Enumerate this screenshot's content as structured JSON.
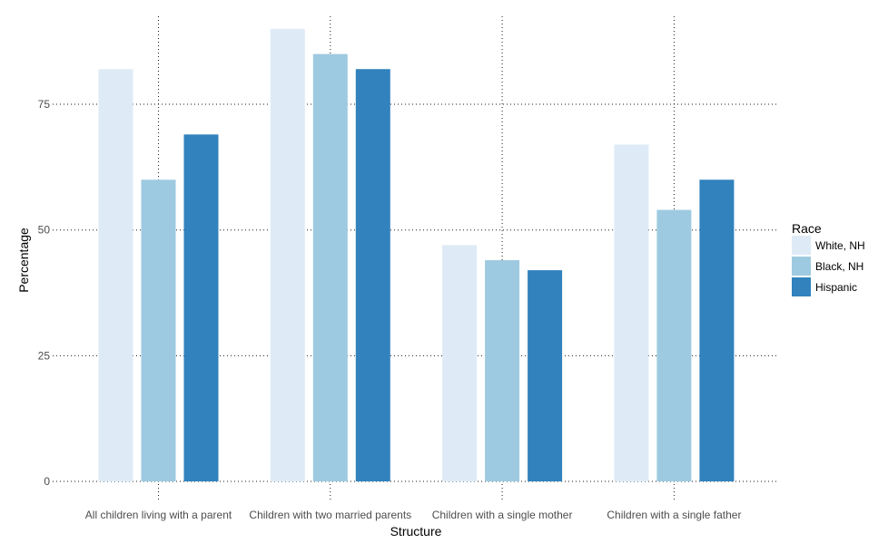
{
  "chart_data": {
    "type": "bar",
    "title": "",
    "xlabel": "Structure",
    "ylabel": "Percentage",
    "categories": [
      "All children living with a parent",
      "Children with two married parents",
      "Children with a single mother",
      "Children with a single father"
    ],
    "series": [
      {
        "name": "White, NH",
        "color": "#deebf7",
        "values": [
          82,
          90,
          47,
          67
        ]
      },
      {
        "name": "Black, NH",
        "color": "#9ecae1",
        "values": [
          60,
          85,
          44,
          54
        ]
      },
      {
        "name": "Hispanic",
        "color": "#3182bd",
        "values": [
          69,
          82,
          42,
          60
        ]
      }
    ],
    "ylim": [
      0,
      92.5
    ],
    "yticks": [
      0,
      25,
      50,
      75
    ],
    "ytick_labels": [
      "0",
      "25",
      "50",
      "75"
    ],
    "grid": true,
    "legend": {
      "title": "Race",
      "placement": "right"
    }
  }
}
